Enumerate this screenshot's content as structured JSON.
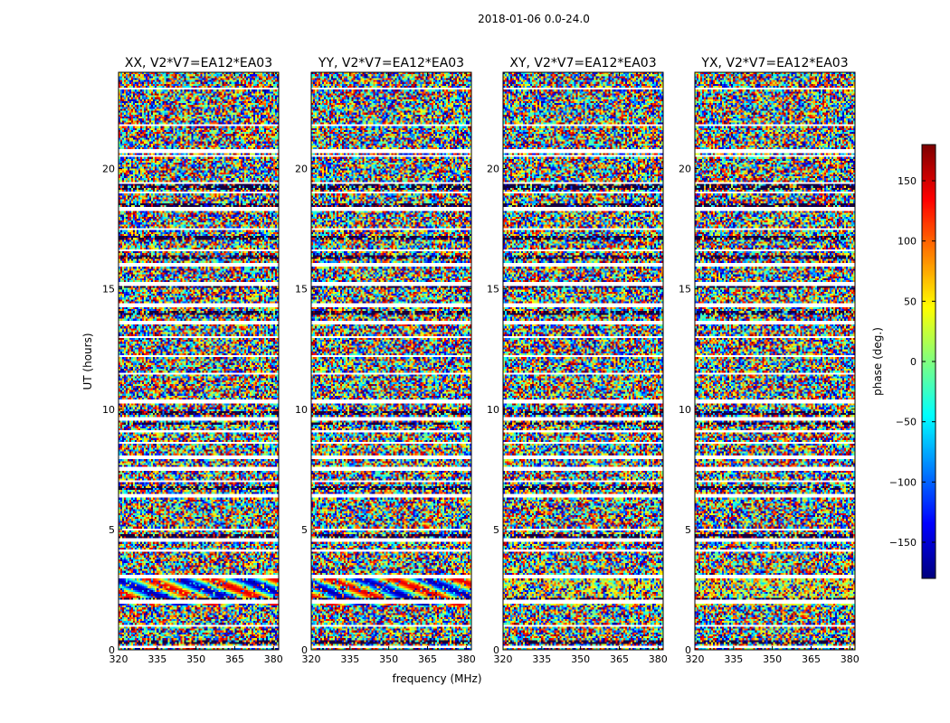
{
  "figure": {
    "suptitle": "2018-01-06 0.0-24.0"
  },
  "chart_data": {
    "type": "heatmap",
    "suptitle": "2018-01-06 0.0-24.0",
    "xlabel": "frequency (MHz)",
    "ylabel": "UT (hours)",
    "xlim": [
      320,
      382
    ],
    "ylim": [
      0,
      24
    ],
    "xticks": [
      "320",
      "335",
      "350",
      "365",
      "380"
    ],
    "yticks": [
      "0",
      "5",
      "10",
      "15",
      "20"
    ],
    "panels": [
      {
        "title": "XX, V2*V7=EA12*EA03",
        "pol": "XX"
      },
      {
        "title": "YY, V2*V7=EA12*EA03",
        "pol": "YY"
      },
      {
        "title": "XY, V2*V7=EA12*EA03",
        "pol": "XY"
      },
      {
        "title": "YX, V2*V7=EA12*EA03",
        "pol": "YX"
      }
    ],
    "colorbar": {
      "label": "phase (deg.)",
      "range": [
        -180,
        180
      ],
      "ticks": [
        "150",
        "100",
        "50",
        "0",
        "−50",
        "−100",
        "−150"
      ],
      "tick_values": [
        150,
        100,
        50,
        0,
        -50,
        -100,
        -150
      ],
      "colormap": "jet"
    },
    "blank_rows_hours": [
      0.12,
      1.0,
      2.0,
      3.05,
      4.1,
      4.55,
      5.0,
      6.4,
      7.0,
      7.5,
      8.0,
      8.6,
      9.1,
      9.6,
      10.3,
      11.5,
      12.2,
      13.0,
      13.6,
      14.3,
      15.2,
      16.0,
      16.6,
      17.5,
      18.3,
      19.0,
      19.4,
      20.5,
      20.7,
      21.8,
      23.3
    ],
    "dark_rows_hours": [
      0.3,
      2.1,
      4.62,
      4.75,
      6.7,
      9.4,
      9.85,
      14.0,
      15.1,
      16.3,
      17.1,
      18.5,
      19.2,
      19.35
    ],
    "coherent_band_hours": [
      1.8,
      3.0
    ]
  }
}
